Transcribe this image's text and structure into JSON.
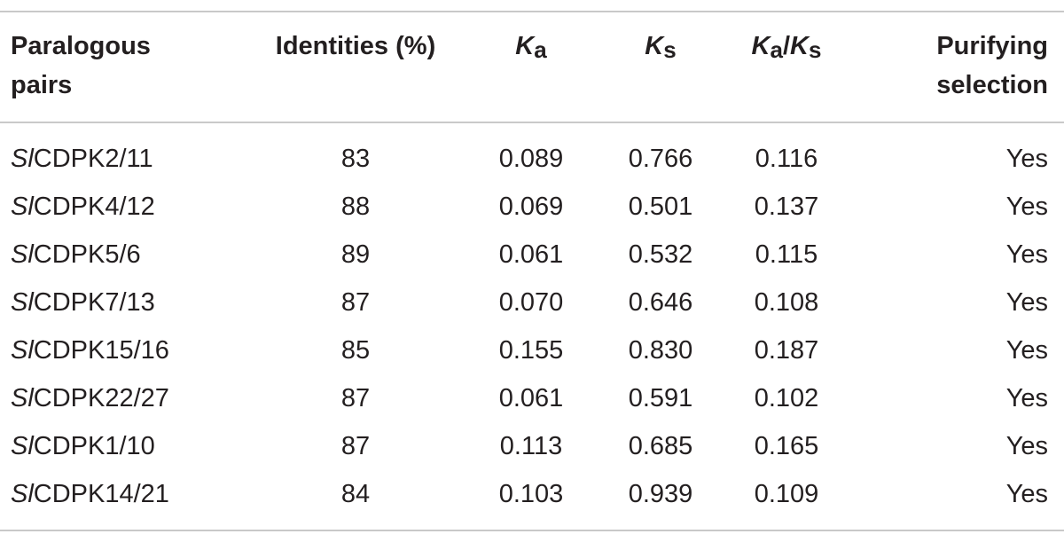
{
  "header": {
    "paralogous_pairs": "Paralogous pairs",
    "paralogous_pairs_line1": "Paralogous",
    "paralogous_pairs_line2": "pairs",
    "identities": "Identities (%)",
    "ka_k": "K",
    "ka_sub": "a",
    "ks_k": "K",
    "ks_sub": "s",
    "kaks_k1": "K",
    "kaks_sub1": "a",
    "kaks_slash": "/",
    "kaks_k2": "K",
    "kaks_sub2": "s",
    "purifying_line1": "Purifying",
    "purifying_line2": "selection"
  },
  "rows": [
    {
      "prefix": "Sl",
      "name": "CDPK2/11",
      "identities": "83",
      "ka": "0.089",
      "ks": "0.766",
      "kaks": "0.116",
      "purifying": "Yes"
    },
    {
      "prefix": "Sl",
      "name": "CDPK4/12",
      "identities": "88",
      "ka": "0.069",
      "ks": "0.501",
      "kaks": "0.137",
      "purifying": "Yes"
    },
    {
      "prefix": "Sl",
      "name": "CDPK5/6",
      "identities": "89",
      "ka": "0.061",
      "ks": "0.532",
      "kaks": "0.115",
      "purifying": "Yes"
    },
    {
      "prefix": "Sl",
      "name": "CDPK7/13",
      "identities": "87",
      "ka": "0.070",
      "ks": "0.646",
      "kaks": "0.108",
      "purifying": "Yes"
    },
    {
      "prefix": "Sl",
      "name": "CDPK15/16",
      "identities": "85",
      "ka": "0.155",
      "ks": "0.830",
      "kaks": "0.187",
      "purifying": "Yes"
    },
    {
      "prefix": "Sl",
      "name": "CDPK22/27",
      "identities": "87",
      "ka": "0.061",
      "ks": "0.591",
      "kaks": "0.102",
      "purifying": "Yes"
    },
    {
      "prefix": "Sl",
      "name": "CDPK1/10",
      "identities": "87",
      "ka": "0.113",
      "ks": "0.685",
      "kaks": "0.165",
      "purifying": "Yes"
    },
    {
      "prefix": "Sl",
      "name": "CDPK14/21",
      "identities": "84",
      "ka": "0.103",
      "ks": "0.939",
      "kaks": "0.109",
      "purifying": "Yes"
    }
  ]
}
